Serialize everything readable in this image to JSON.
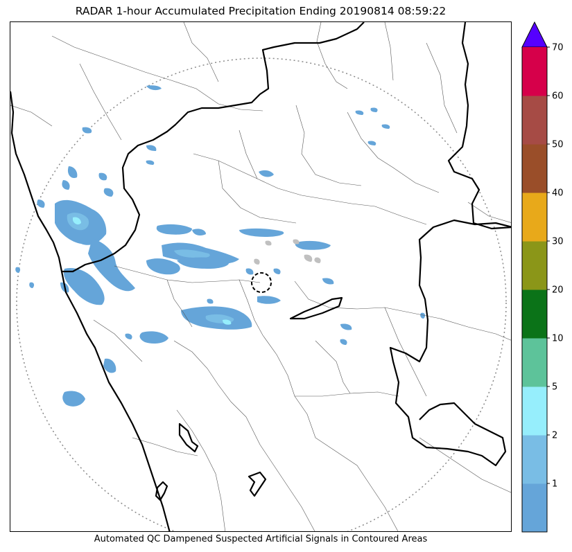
{
  "title": "RADAR 1-hour Accumulated Precipitation Ending 20190814 08:59:22",
  "footer_note": "Automated QC Dampened Suspected Artificial Signals in Contoured Areas",
  "colorbar": {
    "bins": [
      {
        "from": 0,
        "to": 1,
        "color": "#65a5d9"
      },
      {
        "from": 1,
        "to": 2,
        "color": "#79bde5"
      },
      {
        "from": 2,
        "to": 5,
        "color": "#96eefc"
      },
      {
        "from": 5,
        "to": 10,
        "color": "#5dc39a"
      },
      {
        "from": 10,
        "to": 20,
        "color": "#0b7318"
      },
      {
        "from": 20,
        "to": 30,
        "color": "#8b9618"
      },
      {
        "from": 30,
        "to": 40,
        "color": "#e8a91a"
      },
      {
        "from": 40,
        "to": 50,
        "color": "#9a4e29"
      },
      {
        "from": 50,
        "to": 60,
        "color": "#a64b45"
      },
      {
        "from": 60,
        "to": 70,
        "color": "#d6004a"
      }
    ],
    "tick_labels": [
      "1",
      "2",
      "5",
      "10",
      "20",
      "30",
      "40",
      "50",
      "60",
      "70"
    ],
    "extend_max_color": "#5500ff"
  },
  "colors": {
    "rain_light": "#65a5d9",
    "rain_mid": "#79bde5",
    "rain_heavy": "#96eefc",
    "artifact": "#c0c0c0",
    "range_ring": "#888888",
    "boundary_state": "#000000",
    "boundary_district": "#555555"
  }
}
